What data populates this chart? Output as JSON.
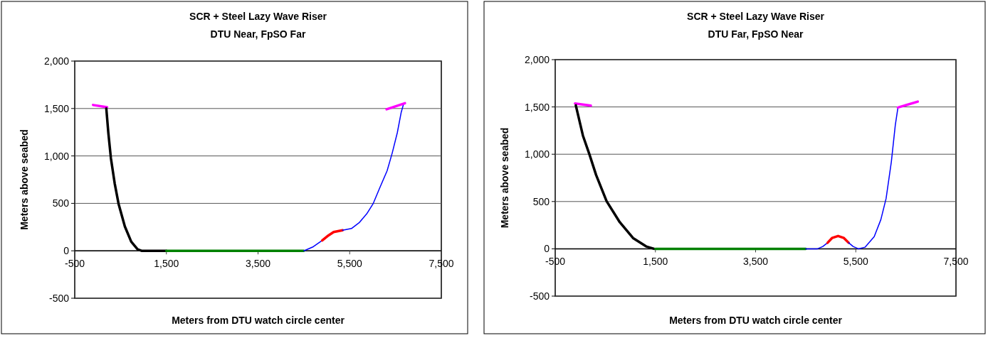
{
  "chart_data": [
    {
      "type": "line",
      "title": "SCR + Steel Lazy Wave Riser",
      "subtitle": "DTU Near, FpSO Far",
      "xlabel": "Meters from DTU watch circle center",
      "ylabel": "Meters above seabed",
      "xlim": [
        -500,
        7500
      ],
      "xticks": [
        -500,
        {
          "value": 1500,
          "label": "1,500"
        },
        {
          "value": 3500,
          "label": "3,500"
        },
        {
          "value": 5500,
          "label": "5,500"
        },
        {
          "value": 7500,
          "label": "7,500"
        }
      ],
      "ylim": [
        -500,
        2000
      ],
      "yticks": [
        -500,
        0,
        500,
        {
          "value": 1000,
          "label": "1,000"
        },
        {
          "value": 1500,
          "label": "1,500"
        },
        {
          "value": 2000,
          "label": "2,000"
        }
      ],
      "grid": "y",
      "series": [
        {
          "color": "#ff00ff",
          "x": [
            -100,
            206
          ],
          "values": [
            1537,
            1513
          ]
        },
        {
          "color": "#000000",
          "x": [
            189,
            233,
            289,
            372,
            456,
            594,
            733,
            872,
            956,
            1500
          ],
          "values": [
            1500,
            1244,
            977,
            710,
            496,
            256,
            96,
            16,
            0,
            0
          ]
        },
        {
          "color": "#008000",
          "x": [
            1500,
            4500
          ],
          "values": [
            0,
            0
          ]
        },
        {
          "color": "#0000ff",
          "x": [
            4500,
            4706,
            4900
          ],
          "values": [
            0,
            43,
            109
          ]
        },
        {
          "color": "#ff0000",
          "x": [
            4900,
            5039,
            5150,
            5345
          ],
          "values": [
            109,
            163,
            198,
            216
          ]
        },
        {
          "color": "#0000ff",
          "x": [
            5345,
            5539,
            5706,
            5873,
            6011,
            6150,
            6317,
            6428,
            6539,
            6623,
            6678
          ],
          "values": [
            216,
            235,
            296,
            390,
            496,
            657,
            843,
            1030,
            1244,
            1457,
            1551
          ]
        },
        {
          "color": "#ff00ff",
          "x": [
            6306,
            6706
          ],
          "values": [
            1492,
            1556
          ]
        }
      ]
    },
    {
      "type": "line",
      "title": "SCR + Steel Lazy Wave Riser",
      "subtitle": "DTU Far, FpSO Near",
      "xlabel": "Meters from DTU watch circle center",
      "ylabel": "Meters above seabed",
      "xlim": [
        -500,
        7500
      ],
      "xticks": [
        -500,
        {
          "value": 1500,
          "label": "1,500"
        },
        {
          "value": 3500,
          "label": "3,500"
        },
        {
          "value": 5500,
          "label": "5,500"
        },
        {
          "value": 7500,
          "label": "7,500"
        }
      ],
      "ylim": [
        -500,
        2000
      ],
      "yticks": [
        -500,
        0,
        500,
        {
          "value": 1000,
          "label": "1,000"
        },
        {
          "value": 1500,
          "label": "1,500"
        },
        {
          "value": 2000,
          "label": "2,000"
        }
      ],
      "grid": "y",
      "series": [
        {
          "color": "#ff00ff",
          "x": [
            -105,
            211
          ],
          "values": [
            1536,
            1514
          ]
        },
        {
          "color": "#000000",
          "x": [
            -89,
            53,
            184,
            316,
            526,
            789,
            1053,
            1316,
            1474
          ],
          "values": [
            1517,
            1197,
            997,
            781,
            503,
            281,
            114,
            25,
            0
          ]
        },
        {
          "color": "#008000",
          "x": [
            1500,
            4500
          ],
          "values": [
            0,
            0
          ]
        },
        {
          "color": "#0000ff",
          "x": [
            4500,
            4737,
            4842,
            4937
          ],
          "values": [
            0,
            0,
            25,
            64
          ]
        },
        {
          "color": "#ff0000",
          "x": [
            4937,
            5026,
            5147,
            5263,
            5358
          ],
          "values": [
            64,
            114,
            136,
            114,
            64
          ]
        },
        {
          "color": "#0000ff",
          "x": [
            5358,
            5447,
            5553,
            5684,
            5868,
            6000,
            6105,
            6210,
            6289,
            6342
          ],
          "values": [
            64,
            25,
            0,
            17,
            128,
            308,
            531,
            920,
            1308,
            1494
          ]
        },
        {
          "color": "#ff00ff",
          "x": [
            6342,
            6737
          ],
          "values": [
            1494,
            1556
          ]
        }
      ]
    }
  ]
}
